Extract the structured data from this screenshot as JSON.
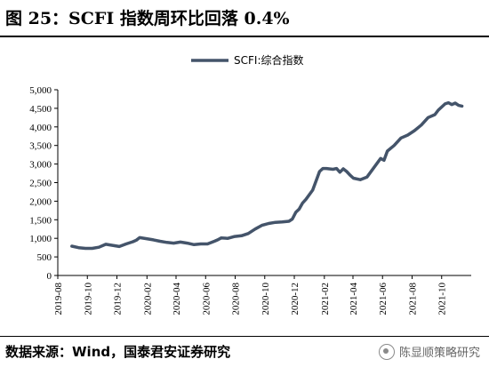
{
  "figure": {
    "title": "图 25：SCFI 指数周环比回落 0.4%",
    "source": "数据来源：Wind，国泰君安证券研究",
    "watermark": "陈显顺策略研究",
    "watermark_icon": "wechat-logo-icon"
  },
  "chart_data": {
    "type": "line",
    "title": "",
    "xlabel": "",
    "ylabel": "",
    "ylim": [
      0,
      5000
    ],
    "yticks": [
      0,
      500,
      1000,
      1500,
      2000,
      2500,
      3000,
      3500,
      4000,
      4500,
      5000
    ],
    "ytick_labels": [
      "0",
      "500",
      "1,000",
      "1,500",
      "2,000",
      "2,500",
      "3,000",
      "3,500",
      "4,000",
      "4,500",
      "5,000"
    ],
    "xticks": [
      "2019-08",
      "2019-10",
      "2019-12",
      "2020-02",
      "2020-04",
      "2020-06",
      "2020-08",
      "2020-10",
      "2020-12",
      "2021-02",
      "2021-04",
      "2021-06",
      "2021-08",
      "2021-10"
    ],
    "grid": false,
    "legend": "top-center",
    "line_color": "#44546A",
    "series": [
      {
        "name": "SCFI:综合指数",
        "points": [
          [
            "2019-08-30",
            790
          ],
          [
            "2019-09-13",
            750
          ],
          [
            "2019-09-27",
            730
          ],
          [
            "2019-10-11",
            730
          ],
          [
            "2019-10-25",
            760
          ],
          [
            "2019-11-08",
            840
          ],
          [
            "2019-11-22",
            810
          ],
          [
            "2019-12-06",
            780
          ],
          [
            "2019-12-20",
            850
          ],
          [
            "2020-01-03",
            910
          ],
          [
            "2020-01-10",
            950
          ],
          [
            "2020-01-17",
            1020
          ],
          [
            "2020-01-31",
            990
          ],
          [
            "2020-02-14",
            960
          ],
          [
            "2020-02-28",
            920
          ],
          [
            "2020-03-13",
            890
          ],
          [
            "2020-03-27",
            870
          ],
          [
            "2020-04-10",
            900
          ],
          [
            "2020-04-24",
            870
          ],
          [
            "2020-05-08",
            830
          ],
          [
            "2020-05-22",
            850
          ],
          [
            "2020-06-05",
            850
          ],
          [
            "2020-06-19",
            920
          ],
          [
            "2020-06-26",
            960
          ],
          [
            "2020-07-03",
            1010
          ],
          [
            "2020-07-17",
            1000
          ],
          [
            "2020-07-31",
            1050
          ],
          [
            "2020-08-14",
            1070
          ],
          [
            "2020-08-28",
            1130
          ],
          [
            "2020-09-11",
            1250
          ],
          [
            "2020-09-25",
            1350
          ],
          [
            "2020-10-09",
            1400
          ],
          [
            "2020-10-23",
            1430
          ],
          [
            "2020-11-06",
            1440
          ],
          [
            "2020-11-20",
            1460
          ],
          [
            "2020-11-27",
            1520
          ],
          [
            "2020-12-04",
            1700
          ],
          [
            "2020-12-11",
            1790
          ],
          [
            "2020-12-18",
            1950
          ],
          [
            "2020-12-25",
            2050
          ],
          [
            "2021-01-08",
            2300
          ],
          [
            "2021-01-15",
            2550
          ],
          [
            "2021-01-22",
            2800
          ],
          [
            "2021-01-29",
            2880
          ],
          [
            "2021-02-05",
            2880
          ],
          [
            "2021-02-19",
            2860
          ],
          [
            "2021-02-26",
            2880
          ],
          [
            "2021-03-05",
            2780
          ],
          [
            "2021-03-12",
            2870
          ],
          [
            "2021-03-19",
            2800
          ],
          [
            "2021-03-26",
            2700
          ],
          [
            "2021-04-02",
            2620
          ],
          [
            "2021-04-16",
            2580
          ],
          [
            "2021-04-30",
            2650
          ],
          [
            "2021-05-14",
            2900
          ],
          [
            "2021-05-28",
            3150
          ],
          [
            "2021-06-04",
            3100
          ],
          [
            "2021-06-11",
            3350
          ],
          [
            "2021-06-25",
            3500
          ],
          [
            "2021-07-09",
            3700
          ],
          [
            "2021-07-23",
            3780
          ],
          [
            "2021-08-06",
            3900
          ],
          [
            "2021-08-20",
            4050
          ],
          [
            "2021-09-03",
            4250
          ],
          [
            "2021-09-17",
            4330
          ],
          [
            "2021-09-24",
            4450
          ],
          [
            "2021-10-08",
            4620
          ],
          [
            "2021-10-15",
            4650
          ],
          [
            "2021-10-22",
            4600
          ],
          [
            "2021-10-29",
            4640
          ],
          [
            "2021-11-05",
            4580
          ],
          [
            "2021-11-12",
            4560
          ]
        ]
      }
    ]
  }
}
